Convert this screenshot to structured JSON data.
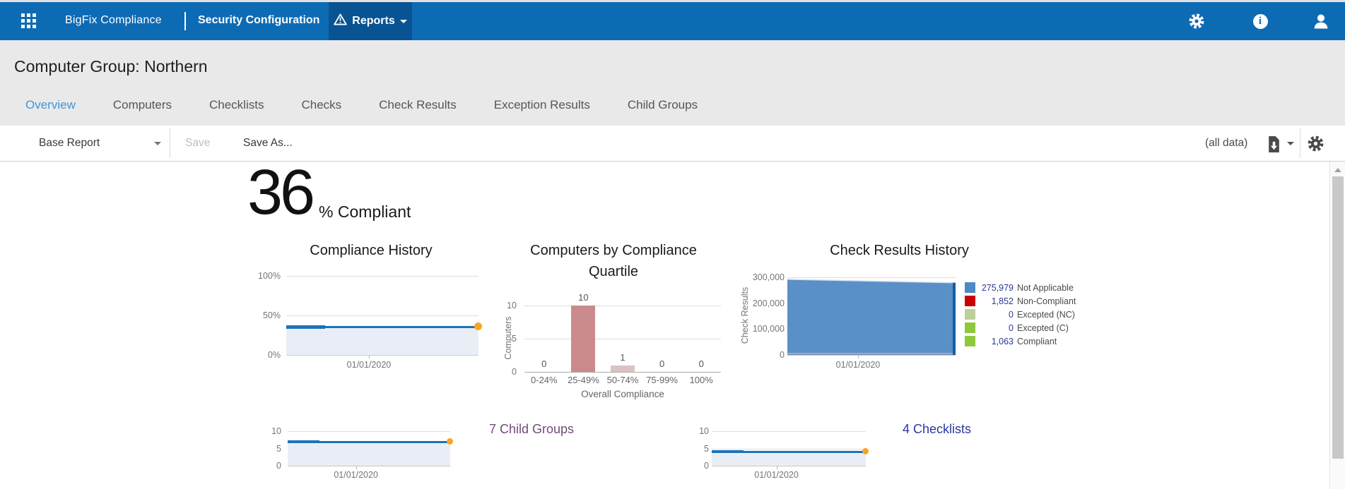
{
  "nav": {
    "product": "BigFix Compliance",
    "section": "Security Configuration",
    "menu_label": "Reports",
    "icons": [
      "app-grid-icon",
      "warning-triangle-icon",
      "caret-down-icon",
      "gear-icon",
      "info-icon",
      "user-icon"
    ],
    "colors": {
      "bar": "#0d6bb4",
      "active_menu": "#085492"
    }
  },
  "page": {
    "title": "Computer Group: Northern"
  },
  "tabs": {
    "items": [
      {
        "label": "Overview",
        "active": true
      },
      {
        "label": "Computers",
        "active": false
      },
      {
        "label": "Checklists",
        "active": false
      },
      {
        "label": "Checks",
        "active": false
      },
      {
        "label": "Check Results",
        "active": false
      },
      {
        "label": "Exception Results",
        "active": false
      },
      {
        "label": "Child Groups",
        "active": false
      }
    ],
    "active_color": "#4296d7",
    "underline_color": "#1778c4"
  },
  "toolbar": {
    "report_dropdown_value": "Base Report",
    "save_label": "Save",
    "save_enabled": false,
    "save_as_label": "Save As...",
    "scope_label": "(all data)",
    "icons": [
      "export-icon",
      "caret-down-icon",
      "gear-icon"
    ]
  },
  "summary": {
    "value": "36",
    "suffix": "% Compliant"
  },
  "chart_data": [
    {
      "id": "compliance_history",
      "type": "area",
      "title": "Compliance History",
      "yticks": [
        "100%",
        "50%",
        "0%"
      ],
      "ylim": [
        0,
        100
      ],
      "xtick_label": "01/01/2020",
      "series": [
        {
          "name": "Compliance",
          "values": [
            36,
            36
          ]
        }
      ],
      "current_value": 36,
      "line_color": "#1c74b8",
      "fill_color": "#e9eef6",
      "marker_color": "#f6a623"
    },
    {
      "id": "computers_by_compliance_quartile",
      "type": "bar",
      "title": "Computers by Compliance Quartile",
      "title_lines": [
        "Computers by Compliance",
        "Quartile"
      ],
      "xlabel": "Overall Compliance",
      "ylabel": "Computers",
      "yticks": [
        "10",
        "5",
        "0"
      ],
      "ylim": [
        0,
        10
      ],
      "categories": [
        "0-24%",
        "25-49%",
        "50-74%",
        "75-99%",
        "100%"
      ],
      "values": [
        0,
        10,
        1,
        0,
        0
      ],
      "bar_colors": [
        "#c98b8d",
        "#c98b8d",
        "#dec1c3",
        "#c98b8d",
        "#c98b8d"
      ]
    },
    {
      "id": "check_results_history",
      "type": "stacked-area",
      "title": "Check Results History",
      "ylabel": "Check Results",
      "yticks": [
        "300,000",
        "200,000",
        "100,000",
        "0"
      ],
      "ylim": [
        0,
        300000
      ],
      "xtick_label": "01/01/2020",
      "totals": {
        "start": 292000,
        "end": 278894
      },
      "area_color": "#5b8fc7",
      "end_marker_color": "#135fa0",
      "legend_position": "right",
      "legend": [
        {
          "value": "275,979",
          "label": "Not Applicable",
          "color": "#4d89c4"
        },
        {
          "value": "1,852",
          "label": "Non-Compliant",
          "color": "#cb0000"
        },
        {
          "value": "0",
          "label": "Excepted (NC)",
          "color": "#bdd09b"
        },
        {
          "value": "0",
          "label": "Excepted (C)",
          "color": "#90c83c"
        },
        {
          "value": "1,063",
          "label": "Compliant",
          "color": "#90c83c"
        }
      ]
    },
    {
      "id": "child_groups_trend",
      "type": "area",
      "yticks": [
        "10",
        "5",
        "0"
      ],
      "ylim": [
        0,
        10
      ],
      "current_value": 7,
      "xtick_label": "01/01/2020",
      "link_label": "7 Child Groups",
      "link_color": "#74497b"
    },
    {
      "id": "checklists_trend",
      "type": "area",
      "yticks": [
        "10",
        "5",
        "0"
      ],
      "ylim": [
        0,
        10
      ],
      "current_value": 4,
      "xtick_label": "01/01/2020",
      "link_label": "4 Checklists",
      "link_color": "#2c35a5"
    }
  ]
}
